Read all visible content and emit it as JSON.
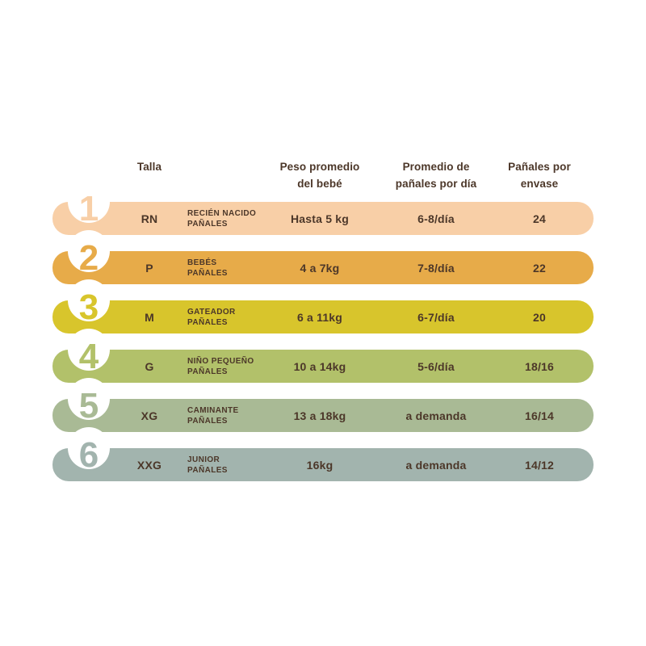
{
  "page": {
    "background": "#ffffff",
    "text_color": "#4c3729"
  },
  "headers": {
    "talla": "Talla",
    "peso_line1": "Peso promedio",
    "peso_line2": "del bebé",
    "perday_line1": "Promedio de",
    "perday_line2": "pañales por día",
    "perpack_line1": "Pañales por",
    "perpack_line2": "envase"
  },
  "rows": [
    {
      "number": "1",
      "size": "RN",
      "product_line1": "RECIÉN NACIDO",
      "product_line2": "PAÑALES",
      "weight": "Hasta 5 kg",
      "per_day": "6-8/día",
      "per_pack": "24",
      "color": "#f8cfa7"
    },
    {
      "number": "2",
      "size": "P",
      "product_line1": "BEBÉS",
      "product_line2": "PAÑALES",
      "weight": "4 a 7kg",
      "per_day": "7-8/día",
      "per_pack": "22",
      "color": "#e7ab49"
    },
    {
      "number": "3",
      "size": "M",
      "product_line1": "GATEADOR",
      "product_line2": "PAÑALES",
      "weight": "6 a 11kg",
      "per_day": "6-7/día",
      "per_pack": "20",
      "color": "#d8c52c"
    },
    {
      "number": "4",
      "size": "G",
      "product_line1": "NIÑO PEQUEÑO",
      "product_line2": "PAÑALES",
      "weight": "10 a 14kg",
      "per_day": "5-6/día",
      "per_pack": "18/16",
      "color": "#b2c16a"
    },
    {
      "number": "5",
      "size": "XG",
      "product_line1": "CAMINANTE",
      "product_line2": "PAÑALES",
      "weight": "13 a 18kg",
      "per_day": "a demanda",
      "per_pack": "16/14",
      "color": "#a9ba95"
    },
    {
      "number": "6",
      "size": "XXG",
      "product_line1": "JUNIOR",
      "product_line2": "PAÑALES",
      "weight": "16kg",
      "per_day": "a demanda",
      "per_pack": "14/12",
      "color": "#a2b4ae"
    }
  ]
}
